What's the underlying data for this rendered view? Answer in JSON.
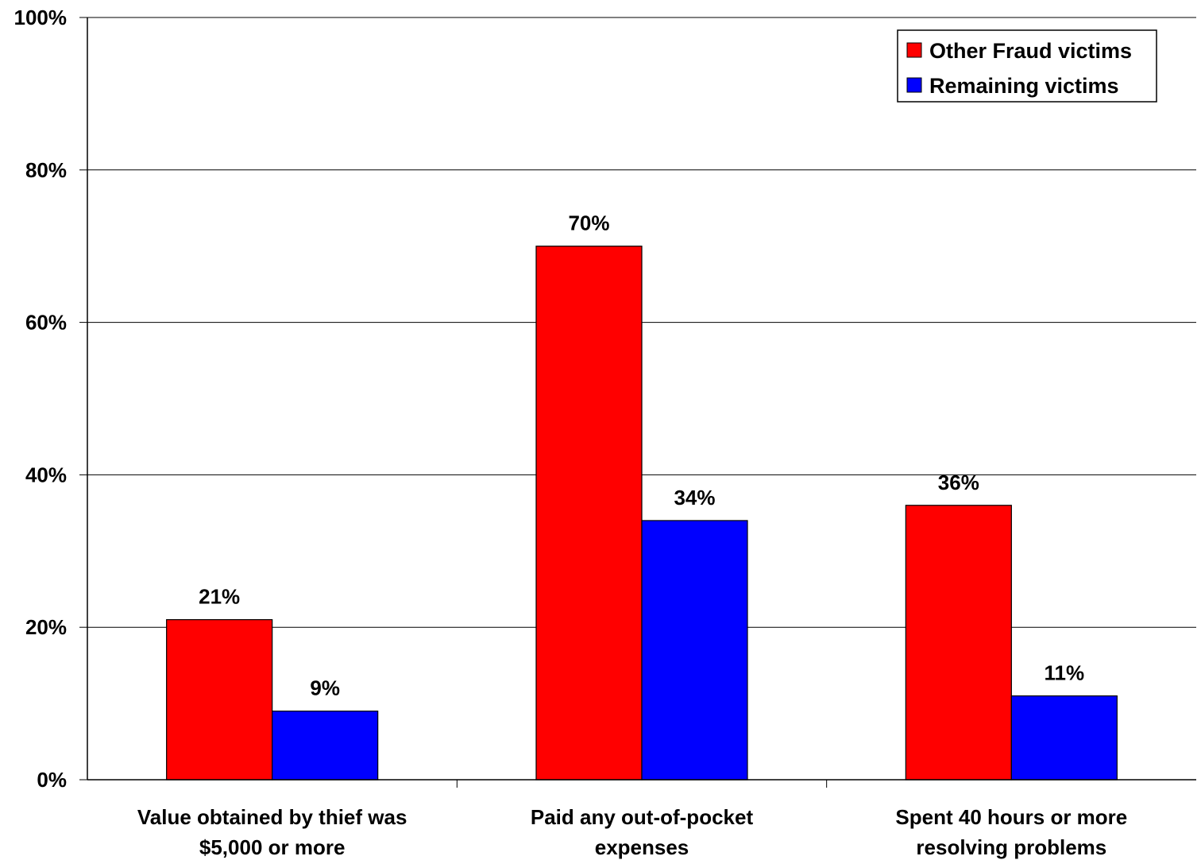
{
  "chart_data": {
    "type": "bar",
    "categories": [
      [
        "Value obtained by thief was",
        "$5,000 or more"
      ],
      [
        "Paid any out-of-pocket",
        "expenses"
      ],
      [
        "Spent 40 hours or more",
        "resolving problems"
      ]
    ],
    "series": [
      {
        "name": "Other Fraud victims",
        "color": "#ff0000",
        "values": [
          21,
          70,
          36
        ],
        "labels": [
          "21%",
          "70%",
          "36%"
        ]
      },
      {
        "name": "Remaining victims",
        "color": "#0000ff",
        "values": [
          9,
          34,
          11
        ],
        "labels": [
          "9%",
          "34%",
          "11%"
        ]
      }
    ],
    "y_ticks": [
      0,
      20,
      40,
      60,
      80,
      100
    ],
    "y_tick_labels": [
      "0%",
      "20%",
      "40%",
      "60%",
      "80%",
      "100%"
    ],
    "ylim": [
      0,
      100
    ],
    "grid": true,
    "legend_position": "top-right",
    "title": "",
    "xlabel": "",
    "ylabel": ""
  }
}
